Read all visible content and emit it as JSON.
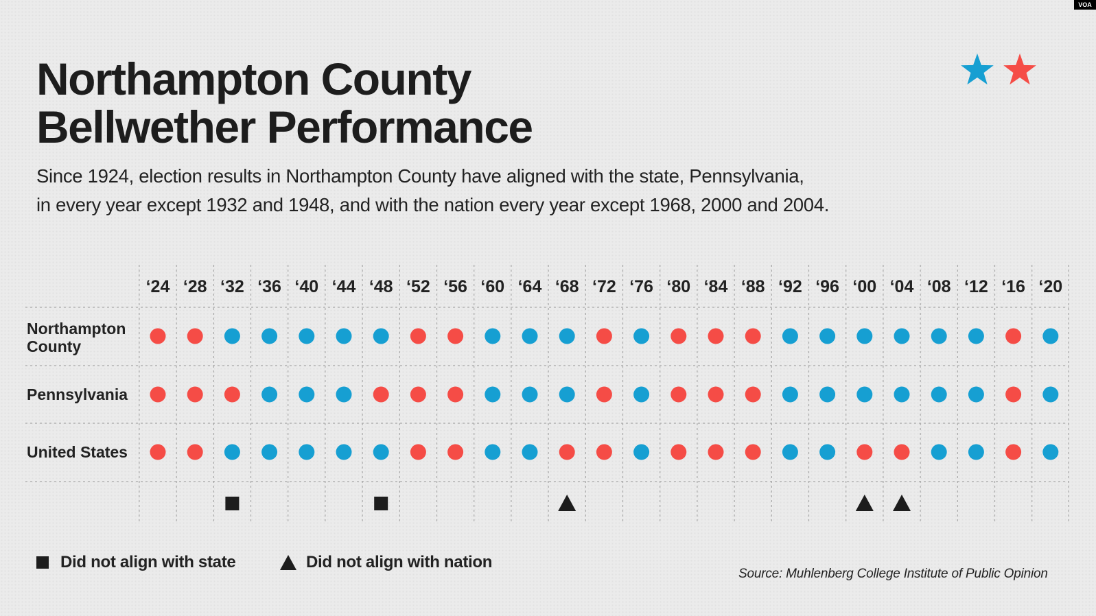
{
  "badge": "VOA",
  "title_lines": [
    "Northampton County",
    "Bellwether Performance"
  ],
  "subtitle_lines": [
    "Since 1924, election results in Northampton County have aligned with the state, Pennsylvania,",
    "in every year except 1932 and 1948, and with the nation every year except 1968, 2000 and 2004."
  ],
  "colors": {
    "blue": "#169fd2",
    "red": "#f54c46",
    "marker": "#1d1d1d",
    "grid": "#a8a8a8"
  },
  "icons": [
    "blue-star-icon",
    "red-star-icon"
  ],
  "legend": {
    "state_label": "Did not align with state",
    "nation_label": "Did not align with nation"
  },
  "source": "Source: Muhlenberg College Institute of Public Opinion",
  "chart_data": {
    "type": "table",
    "categories": [
      "‘24",
      "‘28",
      "‘32",
      "‘36",
      "‘40",
      "‘44",
      "‘48",
      "‘52",
      "‘56",
      "‘60",
      "‘64",
      "‘68",
      "‘72",
      "‘76",
      "‘80",
      "‘84",
      "‘88",
      "‘92",
      "‘96",
      "‘00",
      "‘04",
      "‘08",
      "‘12",
      "‘16",
      "‘20"
    ],
    "series": [
      {
        "name": "Northampton County",
        "values": [
          "R",
          "R",
          "D",
          "D",
          "D",
          "D",
          "D",
          "R",
          "R",
          "D",
          "D",
          "D",
          "R",
          "D",
          "R",
          "R",
          "R",
          "D",
          "D",
          "D",
          "D",
          "D",
          "D",
          "R",
          "D"
        ]
      },
      {
        "name": "Pennsylvania",
        "values": [
          "R",
          "R",
          "R",
          "D",
          "D",
          "D",
          "R",
          "R",
          "R",
          "D",
          "D",
          "D",
          "R",
          "D",
          "R",
          "R",
          "R",
          "D",
          "D",
          "D",
          "D",
          "D",
          "D",
          "R",
          "D"
        ]
      },
      {
        "name": "United States",
        "values": [
          "R",
          "R",
          "D",
          "D",
          "D",
          "D",
          "D",
          "R",
          "R",
          "D",
          "D",
          "R",
          "R",
          "D",
          "R",
          "R",
          "R",
          "D",
          "D",
          "R",
          "R",
          "D",
          "D",
          "R",
          "D"
        ]
      }
    ],
    "not_aligned_with_state": [
      "‘32",
      "‘48"
    ],
    "not_aligned_with_nation": [
      "‘68",
      "‘00",
      "‘04"
    ]
  }
}
